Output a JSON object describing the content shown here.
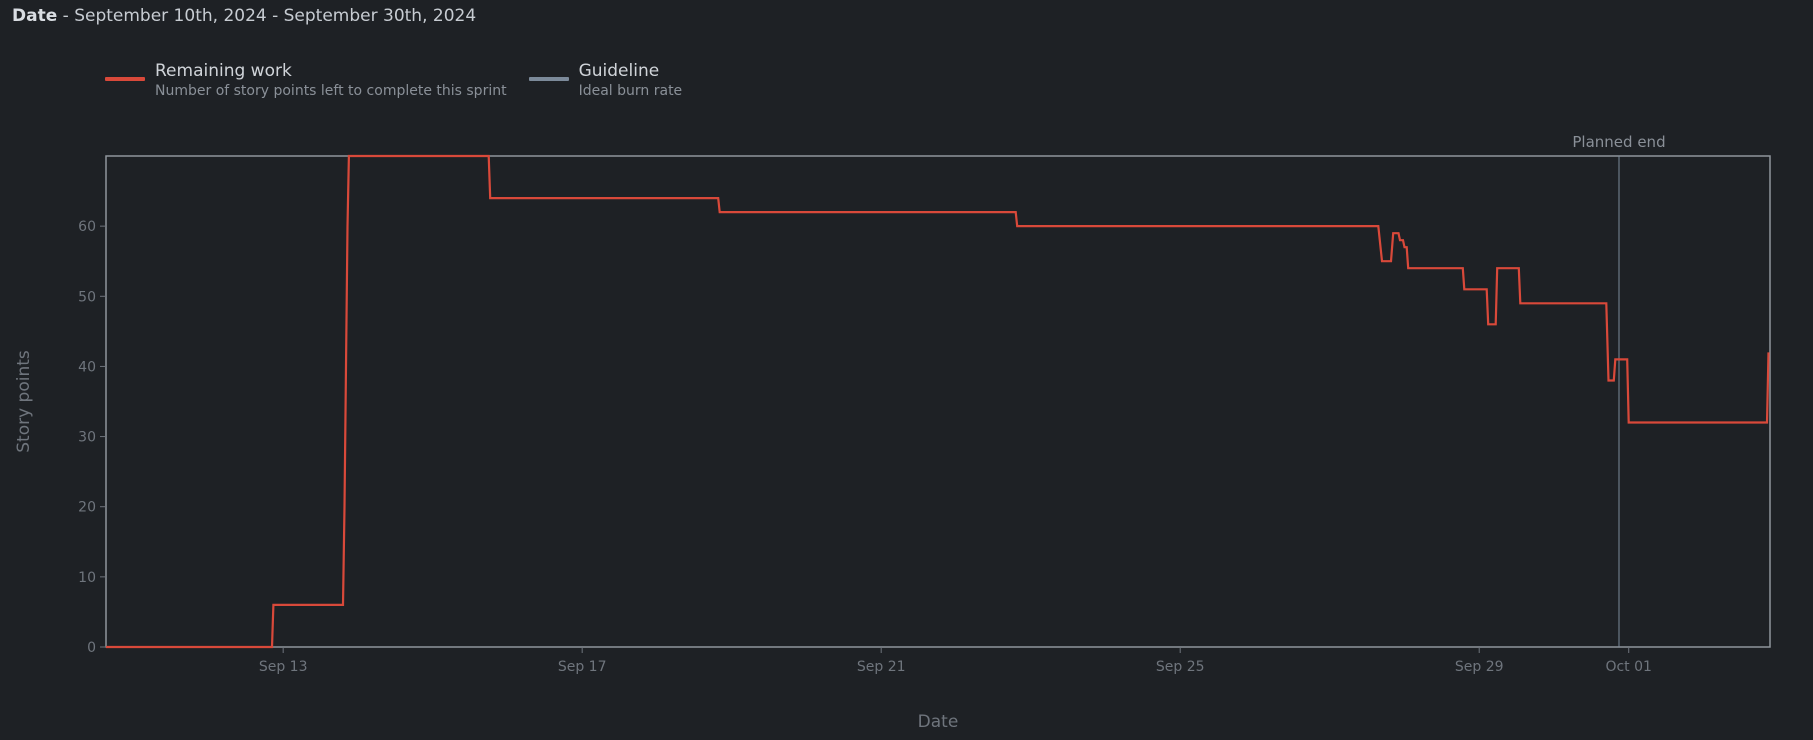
{
  "header": {
    "date_label": "Date",
    "range_text": " - September 10th, 2024 - September 30th, 2024"
  },
  "legend": [
    {
      "title": "Remaining work",
      "desc": "Number of story points left to complete this sprint",
      "color": "#d9493a"
    },
    {
      "title": "Guideline",
      "desc": "Ideal burn rate",
      "color": "#7c8a9a"
    }
  ],
  "chart_data": {
    "type": "line",
    "title": "Date - September 10th, 2024 - September 30th, 2024",
    "xlabel": "Date",
    "ylabel": "Story points",
    "x_unit": "days since Sep 10, 2024",
    "xlim": [
      0.63,
      22.89
    ],
    "ylim": [
      0,
      70
    ],
    "y_ticks": [
      0,
      10,
      20,
      30,
      40,
      50,
      60
    ],
    "x_ticks": [
      {
        "label": "Sep 13",
        "x": 3
      },
      {
        "label": "Sep 17",
        "x": 7
      },
      {
        "label": "Sep 21",
        "x": 11
      },
      {
        "label": "Sep 25",
        "x": 15
      },
      {
        "label": "Sep 29",
        "x": 19
      },
      {
        "label": "Oct 01",
        "x": 21
      }
    ],
    "annotation": {
      "label": "Planned end",
      "x": 20.87
    },
    "series": [
      {
        "name": "Remaining work",
        "color": "#d9493a",
        "points": [
          [
            0.63,
            0
          ],
          [
            2.85,
            0
          ],
          [
            2.87,
            6
          ],
          [
            3.8,
            6
          ],
          [
            3.82,
            20
          ],
          [
            3.86,
            60
          ],
          [
            3.88,
            70
          ],
          [
            5.75,
            70
          ],
          [
            5.77,
            64
          ],
          [
            8.82,
            64
          ],
          [
            8.84,
            62
          ],
          [
            12.8,
            62
          ],
          [
            12.82,
            60
          ],
          [
            17.65,
            60
          ],
          [
            17.7,
            55
          ],
          [
            17.82,
            55
          ],
          [
            17.85,
            59
          ],
          [
            17.92,
            59
          ],
          [
            17.94,
            58
          ],
          [
            17.98,
            58
          ],
          [
            18.0,
            57
          ],
          [
            18.03,
            57
          ],
          [
            18.05,
            54
          ],
          [
            18.78,
            54
          ],
          [
            18.8,
            51
          ],
          [
            19.1,
            51
          ],
          [
            19.12,
            46
          ],
          [
            19.22,
            46
          ],
          [
            19.24,
            54
          ],
          [
            19.53,
            54
          ],
          [
            19.55,
            49
          ],
          [
            20.7,
            49
          ],
          [
            20.73,
            38
          ],
          [
            20.8,
            38
          ],
          [
            20.82,
            41
          ],
          [
            20.98,
            41
          ],
          [
            21.0,
            32
          ],
          [
            22.85,
            32
          ],
          [
            22.87,
            42
          ]
        ]
      }
    ]
  }
}
